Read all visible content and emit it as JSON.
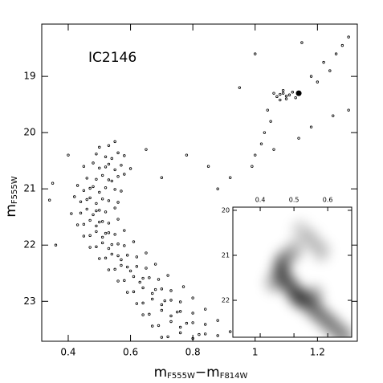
{
  "chart_data": {
    "type": "scatter",
    "title": "IC2146",
    "xlabel": [
      "m",
      "F555W",
      "−m",
      "F814W"
    ],
    "ylabel": [
      "m",
      "F555W"
    ],
    "xlim": [
      0.315,
      1.328
    ],
    "ylim": [
      23.71,
      18.07
    ],
    "xticks": [
      0.4,
      0.6,
      0.8,
      1,
      1.2
    ],
    "yticks": [
      19,
      20,
      21,
      22,
      23
    ],
    "color": "#000000",
    "x": [
      0.53,
      0.55,
      0.5,
      0.52,
      0.56,
      0.54,
      0.49,
      0.58,
      0.5,
      0.53,
      0.55,
      0.57,
      0.52,
      0.48,
      0.6,
      0.49,
      0.51,
      0.54,
      0.56,
      0.46,
      0.58,
      0.53,
      0.45,
      0.48,
      0.5,
      0.52,
      0.55,
      0.43,
      0.57,
      0.47,
      0.44,
      0.47,
      0.49,
      0.51,
      0.53,
      0.42,
      0.56,
      0.46,
      0.44,
      0.46,
      0.48,
      0.5,
      0.52,
      0.55,
      0.41,
      0.49,
      0.45,
      0.47,
      0.49,
      0.51,
      0.53,
      0.56,
      0.43,
      0.5,
      0.47,
      0.49,
      0.51,
      0.53,
      0.55,
      0.58,
      0.45,
      0.52,
      0.49,
      0.51,
      0.53,
      0.56,
      0.58,
      0.61,
      0.47,
      0.54,
      0.52,
      0.54,
      0.57,
      0.59,
      0.62,
      0.65,
      0.5,
      0.56,
      0.55,
      0.57,
      0.6,
      0.62,
      0.65,
      0.68,
      0.53,
      0.59,
      0.58,
      0.61,
      0.63,
      0.66,
      0.69,
      0.72,
      0.56,
      0.64,
      0.61,
      0.64,
      0.67,
      0.7,
      0.73,
      0.77,
      0.59,
      0.68,
      0.64,
      0.67,
      0.7,
      0.73,
      0.76,
      0.8,
      0.62,
      0.71,
      0.66,
      0.7,
      0.73,
      0.76,
      0.8,
      0.84,
      0.64,
      0.75,
      0.69,
      0.73,
      0.76,
      0.8,
      0.84,
      0.88,
      0.67,
      0.78,
      0.72,
      0.76,
      0.8,
      0.84,
      0.88,
      0.92,
      0.7,
      0.82,
      1.08,
      1.1,
      1.09,
      1.11,
      1.07,
      1.12,
      1.1,
      1.06,
      1.09,
      1.13,
      1.08,
      1.18,
      1.22,
      1.26,
      1.28,
      1.3,
      1.24,
      1.2,
      1.05,
      1.03,
      1.02,
      1.0,
      0.99,
      1.04,
      1.06,
      0.35,
      0.34,
      0.36,
      0.4,
      0.65,
      0.78,
      0.85,
      0.92,
      1.0,
      1.15,
      1.25,
      1.3,
      0.95,
      1.18,
      0.7,
      0.88,
      0.45,
      1.14
    ],
    "values": [
      20.23,
      20.16,
      20.26,
      20.43,
      20.36,
      20.46,
      20.38,
      20.41,
      20.63,
      20.56,
      20.66,
      20.58,
      20.61,
      20.54,
      20.64,
      20.83,
      20.76,
      20.86,
      20.78,
      20.81,
      20.74,
      20.84,
      21.03,
      20.96,
      21.06,
      20.98,
      21.01,
      20.94,
      21.04,
      20.99,
      21.23,
      21.16,
      21.26,
      21.18,
      21.21,
      21.14,
      21.24,
      21.19,
      21.43,
      21.36,
      21.46,
      21.38,
      21.41,
      21.34,
      21.44,
      21.39,
      21.63,
      21.56,
      21.66,
      21.58,
      21.61,
      21.54,
      21.64,
      21.59,
      21.83,
      21.76,
      21.86,
      21.78,
      21.81,
      21.74,
      21.84,
      21.79,
      22.03,
      21.96,
      22.06,
      21.98,
      22.01,
      21.94,
      22.04,
      21.99,
      22.23,
      22.16,
      22.26,
      22.18,
      22.21,
      22.14,
      22.24,
      22.19,
      22.43,
      22.36,
      22.46,
      22.38,
      22.41,
      22.34,
      22.44,
      22.39,
      22.63,
      22.56,
      22.66,
      22.58,
      22.61,
      22.54,
      22.64,
      22.59,
      22.83,
      22.76,
      22.86,
      22.78,
      22.81,
      22.74,
      22.84,
      22.79,
      23.03,
      22.96,
      23.06,
      22.98,
      23.01,
      22.94,
      23.04,
      22.99,
      23.23,
      23.16,
      23.26,
      23.18,
      23.21,
      23.14,
      23.24,
      23.19,
      23.43,
      23.36,
      23.46,
      23.38,
      23.41,
      23.34,
      23.44,
      23.39,
      23.63,
      23.56,
      23.66,
      23.58,
      23.61,
      23.54,
      23.64,
      23.59,
      19.32,
      19.35,
      19.3,
      19.33,
      19.36,
      19.28,
      19.4,
      19.3,
      19.25,
      19.38,
      19.42,
      19.0,
      18.75,
      18.6,
      18.45,
      18.3,
      18.9,
      19.1,
      19.8,
      20.0,
      20.2,
      20.4,
      20.6,
      19.6,
      20.3,
      20.9,
      21.2,
      22.0,
      20.4,
      20.3,
      20.4,
      20.6,
      20.8,
      18.6,
      18.4,
      19.7,
      19.6,
      19.2,
      19.9,
      20.8,
      21.0,
      20.6,
      20.1
    ],
    "marker": {
      "x": 1.14,
      "value": 19.3
    },
    "inset": {
      "xlim": [
        0.319,
        0.671
      ],
      "ylim": [
        22.82,
        19.93
      ],
      "xticks": [
        0.4,
        0.5,
        0.6
      ],
      "yticks": [
        20,
        21,
        22
      ],
      "x": [
        0.52,
        0.55,
        0.5,
        0.47,
        0.46,
        0.47,
        0.49,
        0.51,
        0.53,
        0.56,
        0.59,
        0.62,
        0.65,
        0.58,
        0.44,
        0.56
      ],
      "values": [
        20.45,
        20.65,
        20.9,
        21.1,
        21.3,
        21.5,
        21.7,
        21.9,
        22.0,
        22.2,
        22.4,
        22.6,
        22.8,
        20.9,
        21.6,
        21.9
      ],
      "density": [
        0.3,
        0.4,
        0.5,
        0.7,
        0.8,
        0.85,
        0.9,
        1.0,
        0.95,
        0.85,
        0.8,
        0.75,
        0.7,
        0.4,
        0.5,
        0.6
      ]
    }
  }
}
